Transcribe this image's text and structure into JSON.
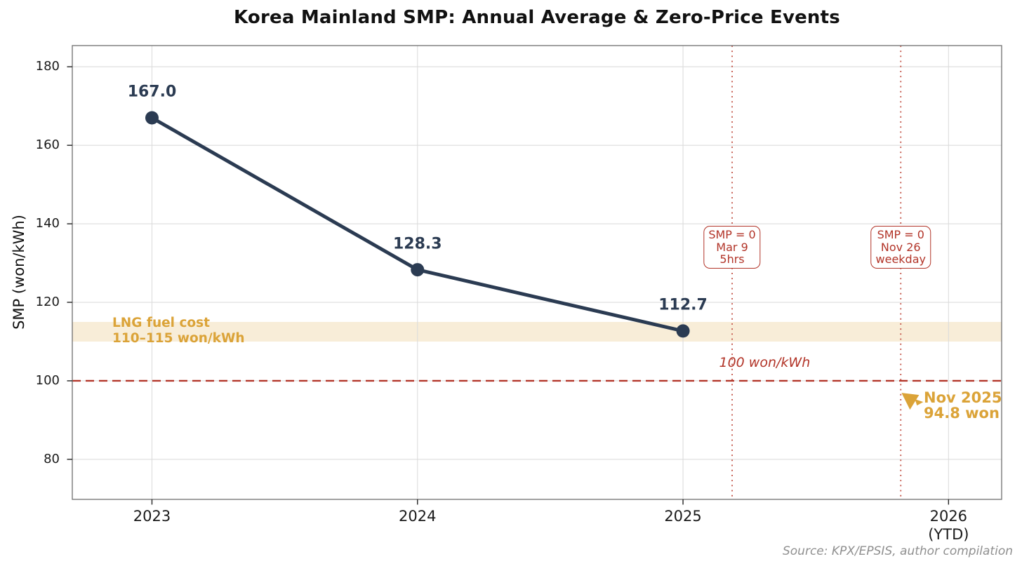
{
  "source_note": "Source: KPX/EPSIS, author compilation",
  "colors": {
    "line_navy": "#2b3b52",
    "red": "#b23428",
    "red_dotted": "#c4574b",
    "gold": "#dba338",
    "band_fill": "rgba(220,164,60,0.20)",
    "grid": "#dcdcdc",
    "spine": "#6e6e6e",
    "tick_mark": "#222222",
    "title_text": "#111111"
  },
  "chart_data": {
    "type": "line",
    "title": "Korea Mainland SMP: Annual Average & Zero-Price Events",
    "xlabel": "",
    "ylabel": "SMP (won/kWh)",
    "x": [
      2023,
      2024,
      2025
    ],
    "values": [
      167.0,
      128.3,
      112.7
    ],
    "point_labels": [
      "167.0",
      "128.3",
      "112.7"
    ],
    "xlim": [
      2022.7,
      2026.2
    ],
    "ylim": [
      69.8,
      185.4
    ],
    "grid": true,
    "legend": "none",
    "yticks": [
      80,
      100,
      120,
      140,
      160,
      180
    ],
    "xticks": [
      {
        "v": 2023,
        "label": "2023",
        "sublabel": ""
      },
      {
        "v": 2024,
        "label": "2024",
        "sublabel": ""
      },
      {
        "v": 2025,
        "label": "2025",
        "sublabel": ""
      },
      {
        "v": 2026,
        "label": "2026",
        "sublabel": "(YTD)"
      }
    ],
    "band": {
      "from": 110,
      "to": 115,
      "label_line1": "LNG fuel cost",
      "label_line2": "110–115 won/kWh"
    },
    "hline": {
      "value": 100,
      "label": "100 won/kWh"
    },
    "zero_price_events": [
      {
        "x": 2025.185,
        "lines": [
          "SMP = 0",
          "Mar 9",
          "5hrs"
        ]
      },
      {
        "x": 2025.82,
        "lines": [
          "SMP = 0",
          "Nov 26",
          "weekday"
        ]
      }
    ],
    "latest_annotation": {
      "x": 2025.86,
      "value": 94.8,
      "line1": "Nov 2025",
      "line2": "94.8 won"
    }
  }
}
